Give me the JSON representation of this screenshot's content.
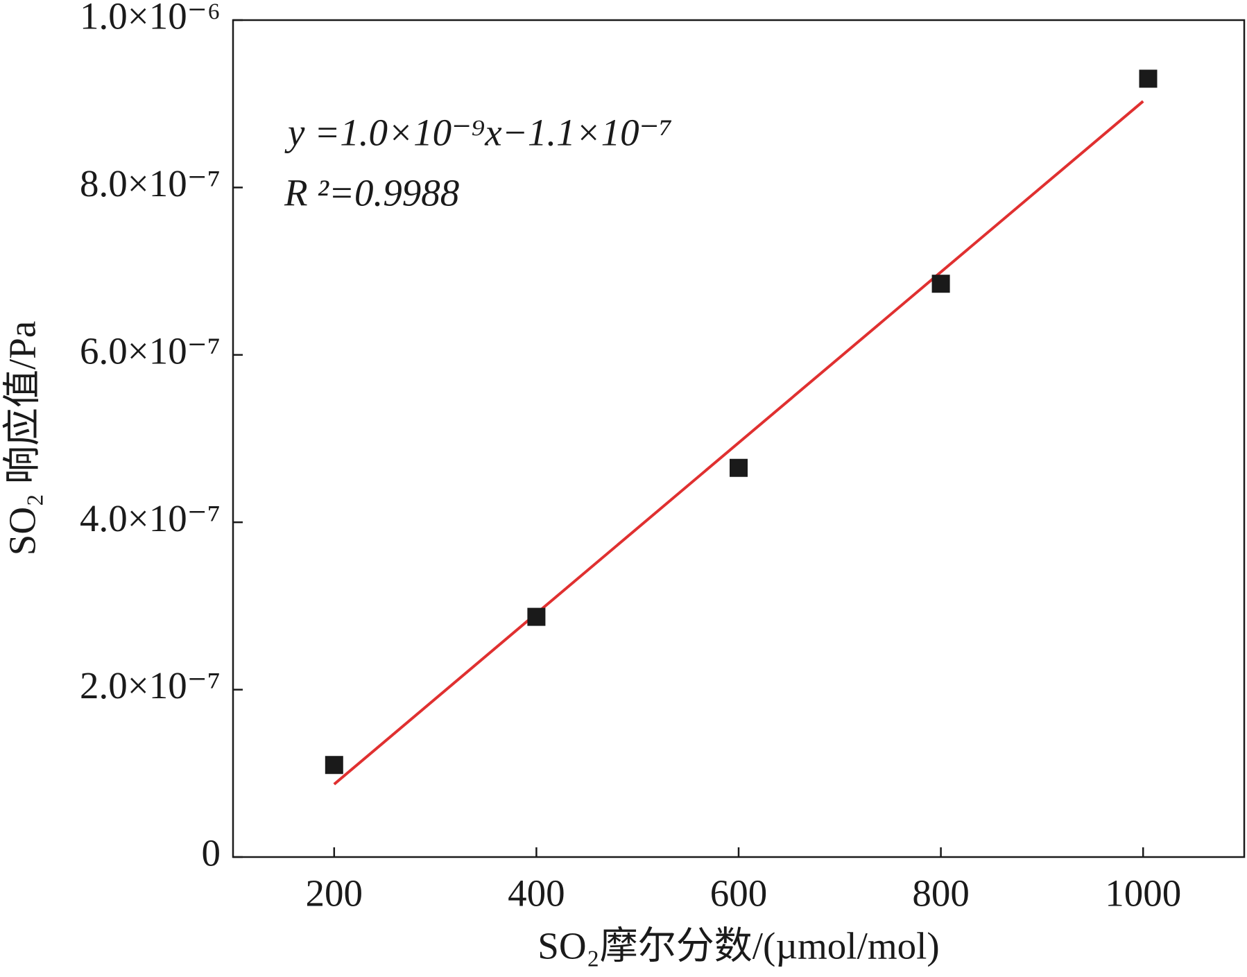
{
  "chart_data": {
    "type": "scatter",
    "x_label": "SO₂摩尔分数/(µmol/mol)",
    "y_label": "SO₂ 响应值/Pa",
    "annotations": [
      "y =1.0×10⁻⁹x−1.1×10⁻⁷",
      "R ²=0.9988"
    ],
    "x": [
      200,
      400,
      600,
      800,
      1005
    ],
    "values": [
      1.1e-07,
      2.87e-07,
      4.65e-07,
      6.85e-07,
      9.3e-07
    ],
    "color": "#1a1a1a",
    "fit": {
      "x": [
        200,
        1000
      ],
      "values": [
        8.7e-08,
        9.03e-07
      ],
      "color": "#e03030"
    },
    "xlim": [
      100,
      1100
    ],
    "xticks": [
      200,
      400,
      600,
      800,
      1000
    ],
    "ylim": [
      0,
      1e-06
    ],
    "yticks": [
      0,
      {
        "value": 2e-07,
        "label": "2.0×10⁻⁷"
      },
      {
        "value": 4e-07,
        "label": "4.0×10⁻⁷"
      },
      {
        "value": 6e-07,
        "label": "6.0×10⁻⁷"
      },
      {
        "value": 8e-07,
        "label": "8.0×10⁻⁷"
      },
      {
        "value": 1e-06,
        "label": "1.0×10⁻⁶"
      }
    ]
  }
}
